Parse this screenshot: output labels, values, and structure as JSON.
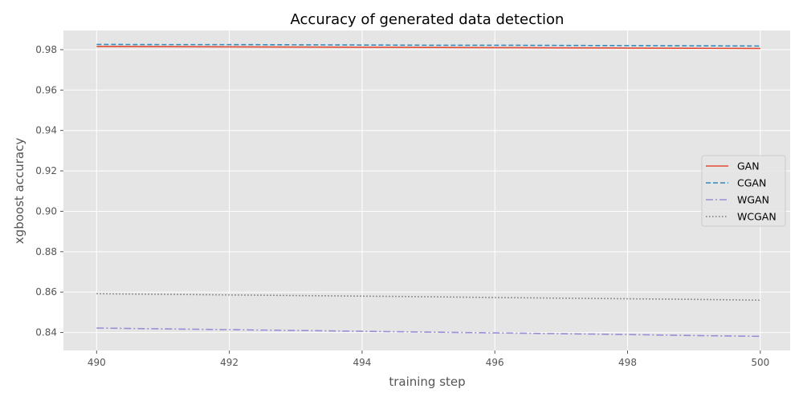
{
  "chart_data": {
    "type": "line",
    "title": "Accuracy of generated data detection",
    "xlabel": "training step",
    "ylabel": "xgboost accuracy",
    "xlim": [
      489.5,
      500.45
    ],
    "ylim": [
      0.8311,
      0.9895
    ],
    "xticks": [
      490,
      492,
      494,
      496,
      498,
      500
    ],
    "xtick_labels": [
      "490",
      "492",
      "494",
      "496",
      "498",
      "500"
    ],
    "yticks": [
      0.84,
      0.86,
      0.88,
      0.9,
      0.92,
      0.94,
      0.96,
      0.98
    ],
    "ytick_labels": [
      "0.84",
      "0.86",
      "0.88",
      "0.90",
      "0.92",
      "0.94",
      "0.96",
      "0.98"
    ],
    "grid": true,
    "legend_position": "center-right",
    "background_color": "#e5e5e5",
    "grid_color": "#ffffff",
    "x": [
      490,
      491,
      492,
      493,
      494,
      495,
      496,
      497,
      498,
      499,
      500
    ],
    "series": [
      {
        "name": "GAN",
        "color": "#e24a33",
        "dash": "solid",
        "values": [
          0.9816,
          0.9815,
          0.9814,
          0.9813,
          0.9812,
          0.9811,
          0.981,
          0.9809,
          0.9808,
          0.9807,
          0.9806
        ]
      },
      {
        "name": "CGAN",
        "color": "#348abd",
        "dash": "dashed",
        "values": [
          0.9826,
          0.9825,
          0.9825,
          0.9824,
          0.9823,
          0.9822,
          0.9822,
          0.9821,
          0.982,
          0.9819,
          0.9818
        ]
      },
      {
        "name": "WGAN",
        "color": "#988ed5",
        "dash": "dashdot",
        "values": [
          0.8422,
          0.8418,
          0.8414,
          0.841,
          0.8406,
          0.8402,
          0.8398,
          0.8394,
          0.839,
          0.8385,
          0.8381
        ]
      },
      {
        "name": "WCGAN",
        "color": "#777777",
        "dash": "dotted",
        "values": [
          0.8592,
          0.8589,
          0.8586,
          0.8583,
          0.858,
          0.8577,
          0.8573,
          0.857,
          0.8567,
          0.8564,
          0.856
        ]
      }
    ]
  }
}
